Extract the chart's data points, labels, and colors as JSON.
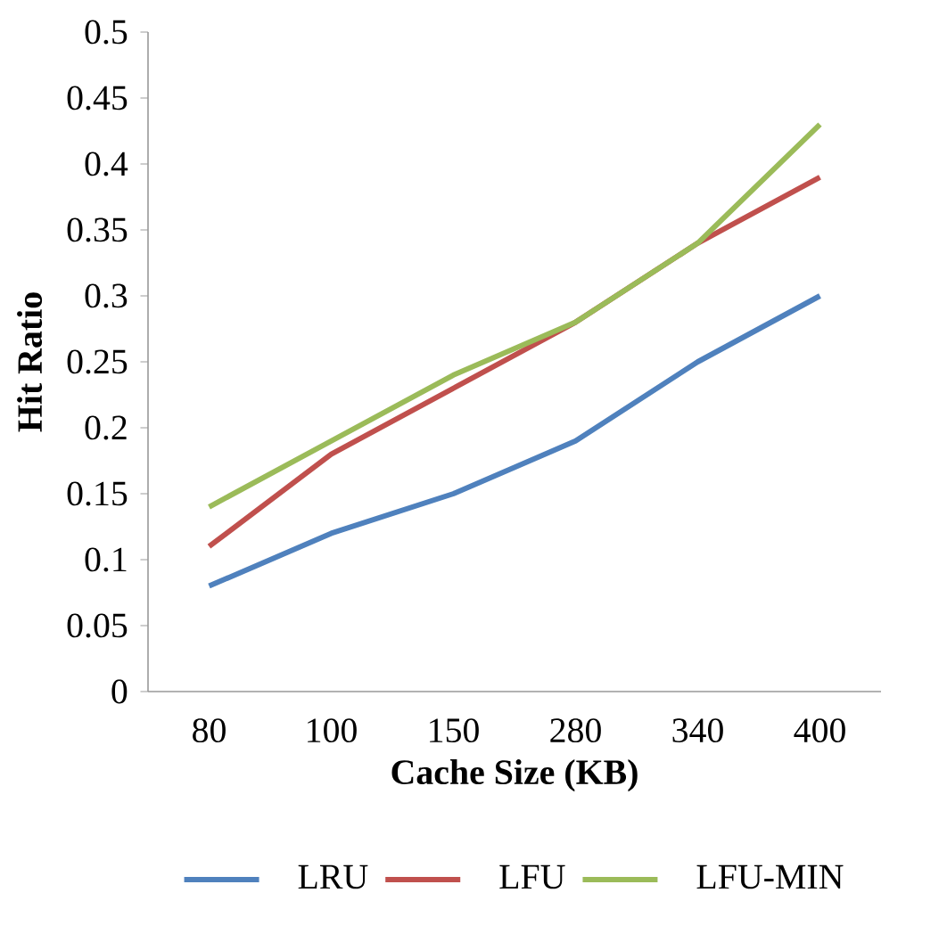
{
  "chart_data": {
    "type": "line",
    "xlabel": "Cache Size (KB)",
    "ylabel": "Hit Ratio",
    "categories": [
      "80",
      "100",
      "150",
      "280",
      "340",
      "400"
    ],
    "series": [
      {
        "name": "LRU",
        "color": "#4f81bd",
        "values": [
          0.08,
          0.12,
          0.15,
          0.19,
          0.25,
          0.3
        ]
      },
      {
        "name": "LFU",
        "color": "#c0504d",
        "values": [
          0.11,
          0.18,
          0.23,
          0.28,
          0.34,
          0.39
        ]
      },
      {
        "name": "LFU-MIN",
        "color": "#9bbb59",
        "values": [
          0.14,
          0.19,
          0.24,
          0.28,
          0.34,
          0.43
        ]
      }
    ],
    "ylim": [
      0,
      0.5
    ],
    "yticks": [
      0,
      0.05,
      0.1,
      0.15,
      0.2,
      0.25,
      0.3,
      0.35,
      0.4,
      0.45,
      0.5
    ],
    "legend": "bottom",
    "marker": "none",
    "line_style": "solid"
  }
}
